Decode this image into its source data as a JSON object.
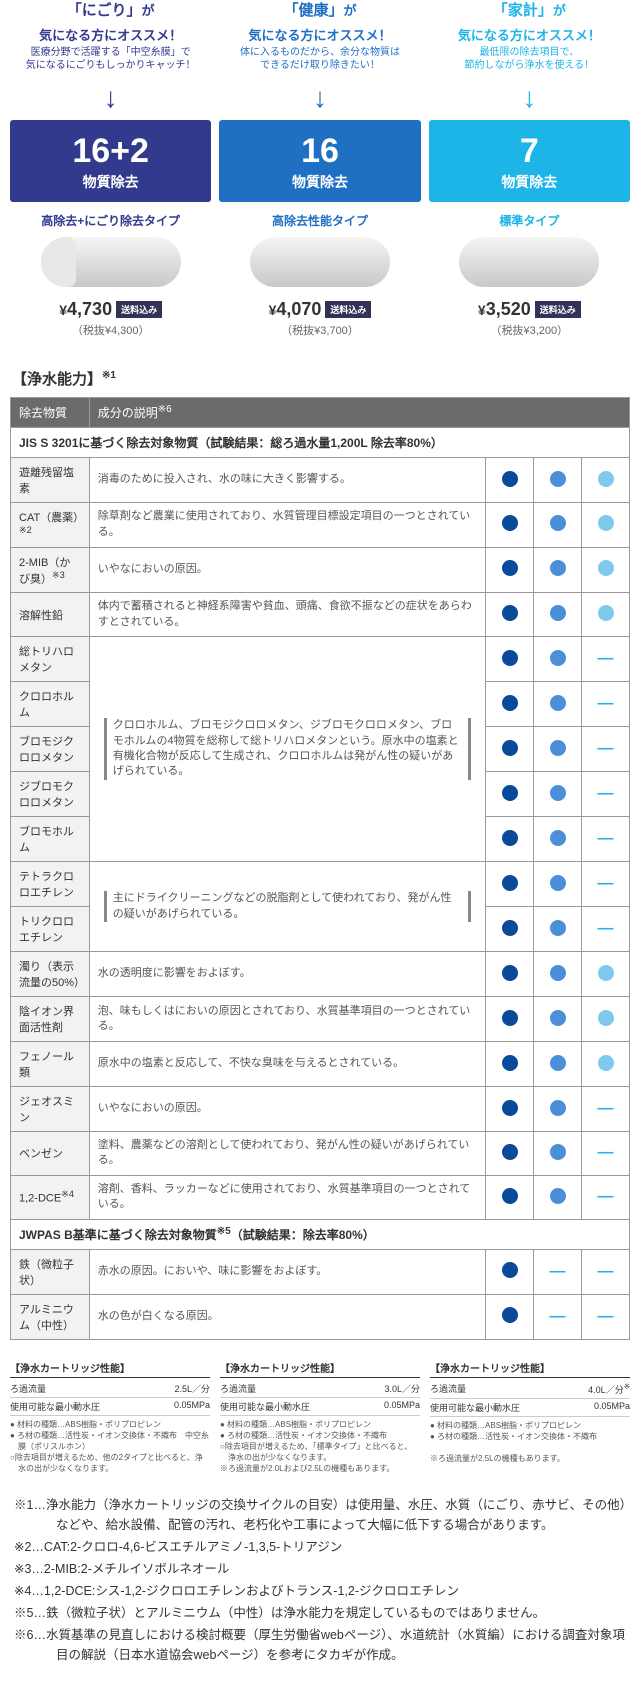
{
  "colors": {
    "c1": "#323a8e",
    "c2": "#1f6fc3",
    "c3": "#1db4e8",
    "dot1": "#0a4a9a",
    "dot2": "#4a8fd8",
    "dot3": "#7fc9ed"
  },
  "cards": [
    {
      "key": "「にごり」",
      "line2": "気になる方にオススメ！",
      "sub": "医療分野で活躍する「中空糸膜」で\n気になるにごりもしっかりキャッチ！",
      "heroN": "16+2",
      "heroS": "物質除去",
      "type": "高除去+にごり除去タイプ",
      "price": "4,730",
      "tax": "（税抜¥4,300）",
      "color": "#323a8e",
      "cart": "c1"
    },
    {
      "key": "「健康」",
      "line2": "気になる方にオススメ！",
      "sub": "体に入るものだから、余分な物質は\nできるだけ取り除きたい！",
      "heroN": "16",
      "heroS": "物質除去",
      "type": "高除去性能タイプ",
      "price": "4,070",
      "tax": "（税抜¥3,700）",
      "color": "#1f6fc3",
      "cart": "c2"
    },
    {
      "key": "「家計」",
      "line2": "気になる方にオススメ！",
      "sub": "最低限の除去項目で、\n節約しながら浄水を使える！",
      "heroN": "7",
      "heroS": "物質除去",
      "type": "標準タイプ",
      "price": "3,520",
      "tax": "（税抜¥3,200）",
      "color": "#1db4e8",
      "cart": "c3"
    }
  ],
  "ship": "送料込み",
  "recSuffix": "が",
  "tableTitle": "【浄水能力】",
  "tableTitleSup": "※1",
  "th1": "除去物質",
  "th2": "成分の説明",
  "th2sup": "※6",
  "sect1": "JIS S 3201に基づく除去対象物質（試験結果：総ろ過水量1,200L 除去率80%）",
  "sect2": "JWPAS B基準に基づく除去対象物質",
  "sect2sup": "※5",
  "sect2tail": "（試験結果：除去率80%）",
  "groupDesc": "クロロホルム、ブロモジクロロメタン、ジブロモクロロメタン、ブロモホルムの4物質を総称して総トリハロメタンという。原水中の塩素と有機化合物が反応して生成され、クロロホルムは発がん性の疑いがあげられている。",
  "groupDesc2": "主にドライクリーニングなどの脱脂剤として使われており、発がん性の疑いがあげられている。",
  "rows": [
    {
      "n": "遊離残留塩素",
      "d": "消毒のために投入され、水の味に大きく影響する。",
      "v": [
        1,
        1,
        1
      ]
    },
    {
      "n": "CAT（農薬）",
      "sup": "※2",
      "d": "除草剤など農業に使用されており、水質管理目標設定項目の一つとされている。",
      "v": [
        1,
        1,
        1
      ]
    },
    {
      "n": "2-MIB（かび臭）",
      "sup": "※3",
      "d": "いやなにおいの原因。",
      "v": [
        1,
        1,
        1
      ]
    },
    {
      "n": "溶解性鉛",
      "d": "体内で蓄積されると神経系障害や貧血、頭痛、食欲不振などの症状をあらわすとされている。",
      "v": [
        1,
        1,
        1
      ]
    },
    {
      "n": "総トリハロメタン",
      "g": 1,
      "gstart": true,
      "gspan": 5,
      "v": [
        1,
        1,
        0
      ]
    },
    {
      "n": "クロロホルム",
      "g": 1,
      "v": [
        1,
        1,
        0
      ]
    },
    {
      "n": "ブロモジクロロメタン",
      "g": 1,
      "v": [
        1,
        1,
        0
      ]
    },
    {
      "n": "ジブロモクロロメタン",
      "g": 1,
      "v": [
        1,
        1,
        0
      ]
    },
    {
      "n": "ブロモホルム",
      "g": 1,
      "v": [
        1,
        1,
        0
      ]
    },
    {
      "n": "テトラクロロエチレン",
      "g": 2,
      "gstart": true,
      "gspan": 2,
      "v": [
        1,
        1,
        0
      ]
    },
    {
      "n": "トリクロロエチレン",
      "g": 2,
      "v": [
        1,
        1,
        0
      ]
    },
    {
      "n": "濁り（表示流量の50%）",
      "d": "水の透明度に影響をおよぼす。",
      "v": [
        1,
        1,
        1
      ]
    },
    {
      "n": "陰イオン界面活性剤",
      "d": "泡、味もしくはにおいの原因とされており、水質基準項目の一つとされている。",
      "v": [
        1,
        1,
        1
      ]
    },
    {
      "n": "フェノール類",
      "d": "原水中の塩素と反応して、不快な臭味を与えるとされている。",
      "v": [
        1,
        1,
        1
      ]
    },
    {
      "n": "ジェオスミン",
      "d": "いやなにおいの原因。",
      "v": [
        1,
        1,
        0
      ]
    },
    {
      "n": "ベンゼン",
      "d": "塗料、農薬などの溶剤として使われており、発がん性の疑いがあげられている。",
      "v": [
        1,
        1,
        0
      ]
    },
    {
      "n": "1,2-DCE",
      "sup": "※4",
      "d": "溶剤、香料、ラッカーなどに使用されており、水質基準項目の一つとされている。",
      "v": [
        1,
        1,
        0
      ]
    }
  ],
  "rows2": [
    {
      "n": "鉄（微粒子状）",
      "d": "赤水の原因。においや、味に影響をおよぼす。",
      "v": [
        1,
        0,
        0
      ]
    },
    {
      "n": "アルミニウム（中性）",
      "d": "水の色が白くなる原因。",
      "v": [
        1,
        0,
        0
      ]
    }
  ],
  "specTitle": "【浄水カートリッジ性能】",
  "specR1": "ろ過流量",
  "specR2": "使用可能な最小動水圧",
  "specs": [
    {
      "flow": "2.5L／分",
      "press": "0.05MPa",
      "notes": [
        "材料の種類…ABS樹脂・ポリプロピレン",
        "ろ材の種類…活性炭・イオン交換体・不織布　中空糸膜（ポリスルホン）",
        "○除去項目が増えるため、他の2タイプと比べると、浄水の出が少なくなります。"
      ]
    },
    {
      "flow": "3.0L／分",
      "press": "0.05MPa",
      "notes": [
        "材料の種類…ABS樹脂・ポリプロピレン",
        "ろ材の種類…活性炭・イオン交換体・不織布",
        "○除去項目が増えるため、「標準タイプ」と比べると、浄水の出が少なくなります。",
        "※ろ過流量が2.0Lおよび2.5Lの機種もあります。"
      ]
    },
    {
      "flow": "4.0L／分",
      "sup": "※",
      "press": "0.05MPa",
      "notes": [
        "材料の種類…ABS樹脂・ポリプロピレン",
        "ろ材の種類…活性炭・イオン交換体・不織布",
        "",
        "※ろ過流量が2.5Lの機種もあります。"
      ]
    }
  ],
  "footnotes": [
    "※1…浄水能力（浄水カートリッジの交換サイクルの目安）は使用量、水圧、水質（にごり、赤サビ、その他）などや、給水設備、配管の汚れ、老朽化や工事によって大幅に低下する場合があります。",
    "※2…CAT:2-クロロ-4,6-ビスエチルアミノ-1,3,5-トリアジン",
    "※3…2-MIB:2-メチルイソボルネオール",
    "※4…1,2-DCE:シス-1,2-ジクロロエチレンおよびトランス-1,2-ジクロロエチレン",
    "※5…鉄（微粒子状）とアルミニウム（中性）は浄水能力を規定しているものではありません。",
    "※6…水質基準の見直しにおける検討概要（厚生労働省webページ）、水道統計（水質編）における調査対象項目の解説（日本水道協会webページ）を参考にタカギが作成。"
  ]
}
